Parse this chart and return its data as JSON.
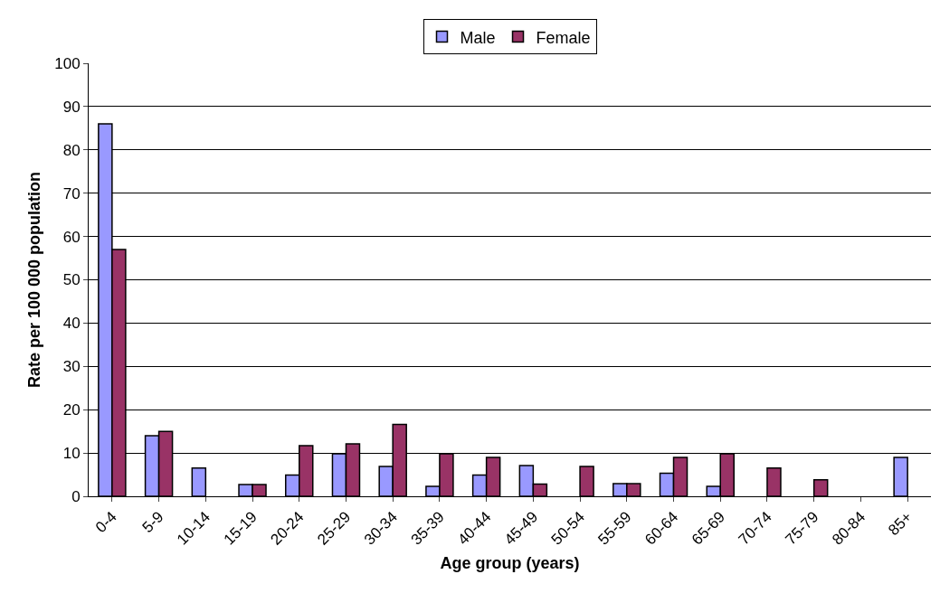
{
  "chart_data": {
    "type": "bar",
    "xlabel": "Age group (years)",
    "ylabel": "Rate per 100 000 population",
    "categories": [
      "0-4",
      "5-9",
      "10-14",
      "15-19",
      "20-24",
      "25-29",
      "30-34",
      "35-39",
      "40-44",
      "45-49",
      "50-54",
      "55-59",
      "60-64",
      "65-69",
      "70-74",
      "75-79",
      "80-84",
      "85+"
    ],
    "series": [
      {
        "name": "Male",
        "color": "#9999ff",
        "values": [
          86,
          14,
          6.5,
          2.7,
          4.9,
          9.8,
          6.9,
          2.3,
          4.9,
          7.1,
          null,
          2.9,
          5.3,
          2.3,
          null,
          null,
          null,
          9
        ]
      },
      {
        "name": "Female",
        "color": "#993366",
        "values": [
          57,
          15,
          null,
          2.7,
          11.7,
          12.1,
          16.6,
          9.8,
          9,
          2.8,
          6.9,
          2.9,
          9,
          9.8,
          6.5,
          3.8,
          null,
          null
        ]
      }
    ],
    "ylim": [
      0,
      100
    ],
    "yticks": [
      0,
      10,
      20,
      30,
      40,
      50,
      60,
      70,
      80,
      90,
      100
    ],
    "grid": "y",
    "legend": "top"
  }
}
